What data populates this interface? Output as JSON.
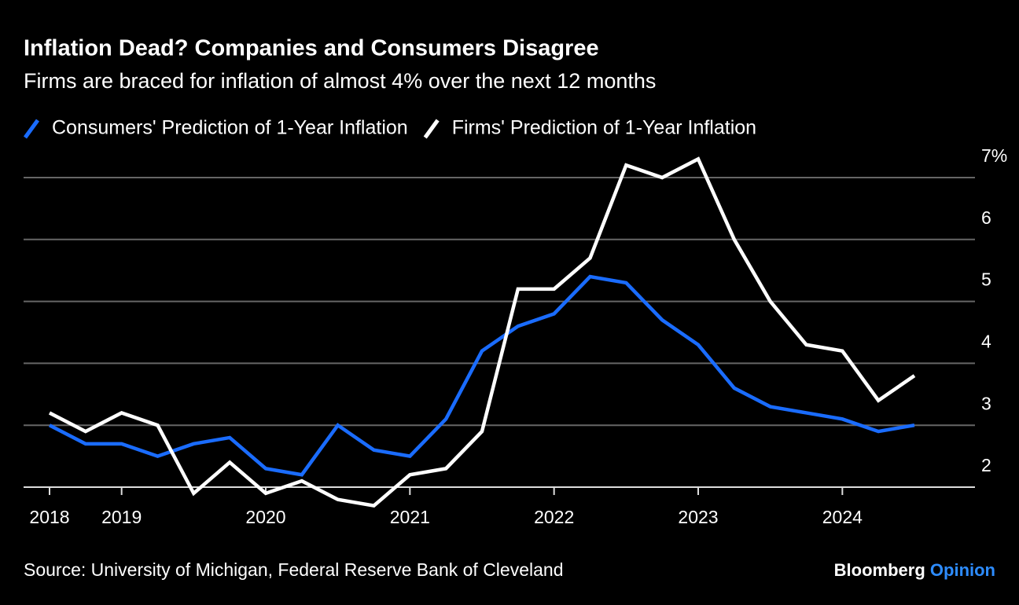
{
  "chart_data": {
    "type": "line",
    "title": "Inflation Dead? Companies and Consumers Disagree",
    "subtitle": "Firms are braced for inflation of almost 4% over the next 12 months",
    "source": "Source: University of Michigan, Federal Reserve Bank of Cleveland",
    "brand": [
      "Bloomberg",
      "Opinion"
    ],
    "x": [
      2018.5,
      2018.75,
      2019,
      2019.25,
      2019.5,
      2019.75,
      2020,
      2020.25,
      2020.5,
      2020.75,
      2021,
      2021.25,
      2021.5,
      2021.75,
      2022,
      2022.25,
      2022.5,
      2022.75,
      2023,
      2023.25,
      2023.5,
      2023.75,
      2024,
      2024.25,
      2024.5
    ],
    "series": [
      {
        "name": "Consumers' Prediction of 1-Year Inflation",
        "color": "#1a6cff",
        "values": [
          3.0,
          2.7,
          2.7,
          2.5,
          2.7,
          2.8,
          2.3,
          2.2,
          3.0,
          2.6,
          2.5,
          3.1,
          4.2,
          4.6,
          4.8,
          5.4,
          5.3,
          4.7,
          4.3,
          3.6,
          3.3,
          3.2,
          3.1,
          2.9,
          3.0
        ]
      },
      {
        "name": "Firms' Prediction of 1-Year Inflation",
        "color": "#ffffff",
        "values": [
          3.2,
          2.9,
          3.2,
          3.0,
          1.9,
          2.4,
          1.9,
          2.1,
          1.8,
          1.7,
          2.2,
          2.3,
          2.9,
          5.2,
          5.2,
          5.7,
          7.2,
          7.0,
          7.3,
          6.0,
          5.0,
          4.3,
          4.2,
          3.4,
          3.8
        ]
      }
    ],
    "xlim": [
      2018.32,
      2024.92
    ],
    "xticks": [
      {
        "value": 2018.5,
        "label": "2018"
      },
      2019,
      2020,
      2021,
      2022,
      2023,
      2024
    ],
    "ylim": [
      2,
      7
    ],
    "yticks": [
      2,
      3,
      4,
      5,
      6,
      {
        "value": 7,
        "label": "7%"
      }
    ],
    "grid": true
  }
}
